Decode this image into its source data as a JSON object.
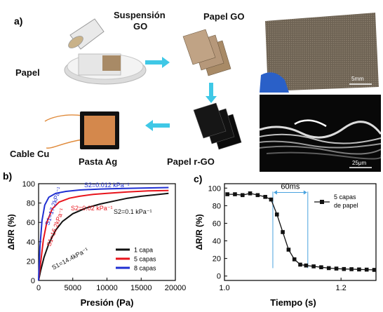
{
  "panel_a": {
    "letter": "a)",
    "labels": {
      "suspension_line1": "Suspensión",
      "suspension_line2": "GO",
      "papel": "Papel",
      "papel_go": "Papel GO",
      "cable_cu": "Cable Cu",
      "pasta_ag": "Pasta Ag",
      "papel_rgo": "Papel r-GO"
    },
    "scale_bars": {
      "top": "5mm",
      "bottom": "25μm"
    },
    "colors": {
      "arrow": "#3fc8e6",
      "go_paper": "#a88a66",
      "rgo_paper": "#0b0b0b",
      "electrode": "#d4884c",
      "wire": "#e08a3a",
      "glove": "#2a60c8"
    }
  },
  "chart_data": [
    {
      "panel": "b)",
      "type": "line",
      "xlabel": "Presión (Pa)",
      "ylabel": "ΔR/R (%)",
      "xlim": [
        0,
        20000
      ],
      "ylim": [
        0,
        100
      ],
      "xticks": [
        "0",
        "5000",
        "10000",
        "15000",
        "20000"
      ],
      "yticks": [
        "0",
        "20",
        "40",
        "60",
        "80",
        "100"
      ],
      "legend_position": "bottom-right",
      "series": [
        {
          "name": "1 capa",
          "color": "#111111",
          "x": [
            0,
            300,
            800,
            1500,
            2500,
            3500,
            5000,
            7000,
            9000,
            11000,
            13000,
            15000,
            17000,
            19000
          ],
          "y": [
            0,
            10,
            24,
            38,
            52,
            61,
            69,
            75,
            79,
            82,
            85,
            87,
            88.5,
            90
          ]
        },
        {
          "name": "5 capas",
          "color": "#e8141c",
          "x": [
            0,
            300,
            700,
            1200,
            2000,
            3000,
            4500,
            6000,
            8000,
            10000,
            13000,
            16000,
            19000
          ],
          "y": [
            0,
            18,
            42,
            60,
            74,
            81,
            85,
            87,
            89,
            90,
            91.5,
            92.5,
            93
          ]
        },
        {
          "name": "8 capas",
          "color": "#1f2fd2",
          "x": [
            0,
            200,
            500,
            900,
            1500,
            2500,
            4000,
            6000,
            9000,
            12000,
            15000,
            19000
          ],
          "y": [
            0,
            35,
            62,
            78,
            86,
            90,
            92,
            93.5,
            94.5,
            95,
            95.5,
            96
          ]
        }
      ],
      "annotations": [
        {
          "text": "S1=17.2kPa⁻¹",
          "color": "#1f2fd2"
        },
        {
          "text": "S2=0.012 kPa⁻¹",
          "color": "#1f2fd2"
        },
        {
          "text": "S1=16.2kPa⁻¹",
          "color": "#e8141c"
        },
        {
          "text": "S2=0.02 kPa⁻¹",
          "color": "#e8141c"
        },
        {
          "text": "S2=0.1 kPa⁻¹",
          "color": "#111111"
        },
        {
          "text": "S1=14.4kPa⁻¹",
          "color": "#111111"
        }
      ]
    },
    {
      "panel": "c)",
      "type": "line",
      "xlabel": "Tiempo (s)",
      "ylabel": "ΔR/R (%)",
      "xlim": [
        1.0,
        1.26
      ],
      "ylim": [
        -5,
        105
      ],
      "xticks": [
        "1.0",
        "1.2"
      ],
      "yticks": [
        "0",
        "20",
        "40",
        "60",
        "80",
        "100"
      ],
      "legend_position": "top-right",
      "series": [
        {
          "name": "5 capas de papel",
          "color": "#111111",
          "x": [
            1.005,
            1.018,
            1.031,
            1.044,
            1.057,
            1.07,
            1.08,
            1.09,
            1.1,
            1.11,
            1.12,
            1.13,
            1.14,
            1.153,
            1.166,
            1.179,
            1.192,
            1.205,
            1.218,
            1.231,
            1.244,
            1.257
          ],
          "y": [
            93,
            93,
            92,
            94,
            92,
            90,
            87,
            70,
            50,
            30,
            19,
            13,
            12,
            11,
            10,
            9,
            8.5,
            8,
            7.8,
            7.5,
            7.3,
            7
          ]
        }
      ],
      "annotations": [
        {
          "text": "60ms",
          "x_from": 1.083,
          "x_to": 1.143
        }
      ]
    }
  ]
}
